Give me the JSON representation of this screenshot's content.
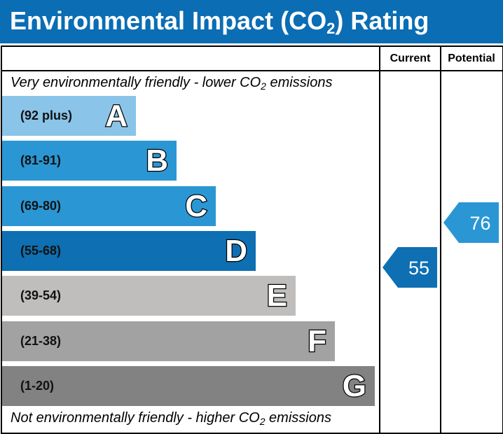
{
  "header": {
    "title_pre": "Environmental Impact (CO",
    "title_sub": "2",
    "title_post": ") Rating"
  },
  "columns": {
    "current_label": "Current",
    "potential_label": "Potential"
  },
  "captions": {
    "top_pre": "Very environmentally friendly - lower CO",
    "top_sub": "2",
    "top_post": " emissions",
    "bottom_pre": "Not environmentally friendly - higher CO",
    "bottom_sub": "2",
    "bottom_post": " emissions"
  },
  "chart_data": {
    "type": "bar",
    "bands": [
      {
        "letter": "A",
        "range": "(92 plus)",
        "min": 92,
        "max": 100,
        "color": "#8ac4e8"
      },
      {
        "letter": "B",
        "range": "(81-91)",
        "min": 81,
        "max": 91,
        "color": "#2a97d4"
      },
      {
        "letter": "C",
        "range": "(69-80)",
        "min": 69,
        "max": 80,
        "color": "#2a97d4"
      },
      {
        "letter": "D",
        "range": "(55-68)",
        "min": 55,
        "max": 68,
        "color": "#0e6fb3"
      },
      {
        "letter": "E",
        "range": "(39-54)",
        "min": 39,
        "max": 54,
        "color": "#bfbebc"
      },
      {
        "letter": "F",
        "range": "(21-38)",
        "min": 21,
        "max": 38,
        "color": "#a2a2a2"
      },
      {
        "letter": "G",
        "range": "(1-20)",
        "min": 1,
        "max": 20,
        "color": "#828282"
      }
    ],
    "current": {
      "value": "55",
      "band": "D",
      "color": "#0e6fb3"
    },
    "potential": {
      "value": "76",
      "band": "C",
      "color": "#2a97d4"
    }
  }
}
